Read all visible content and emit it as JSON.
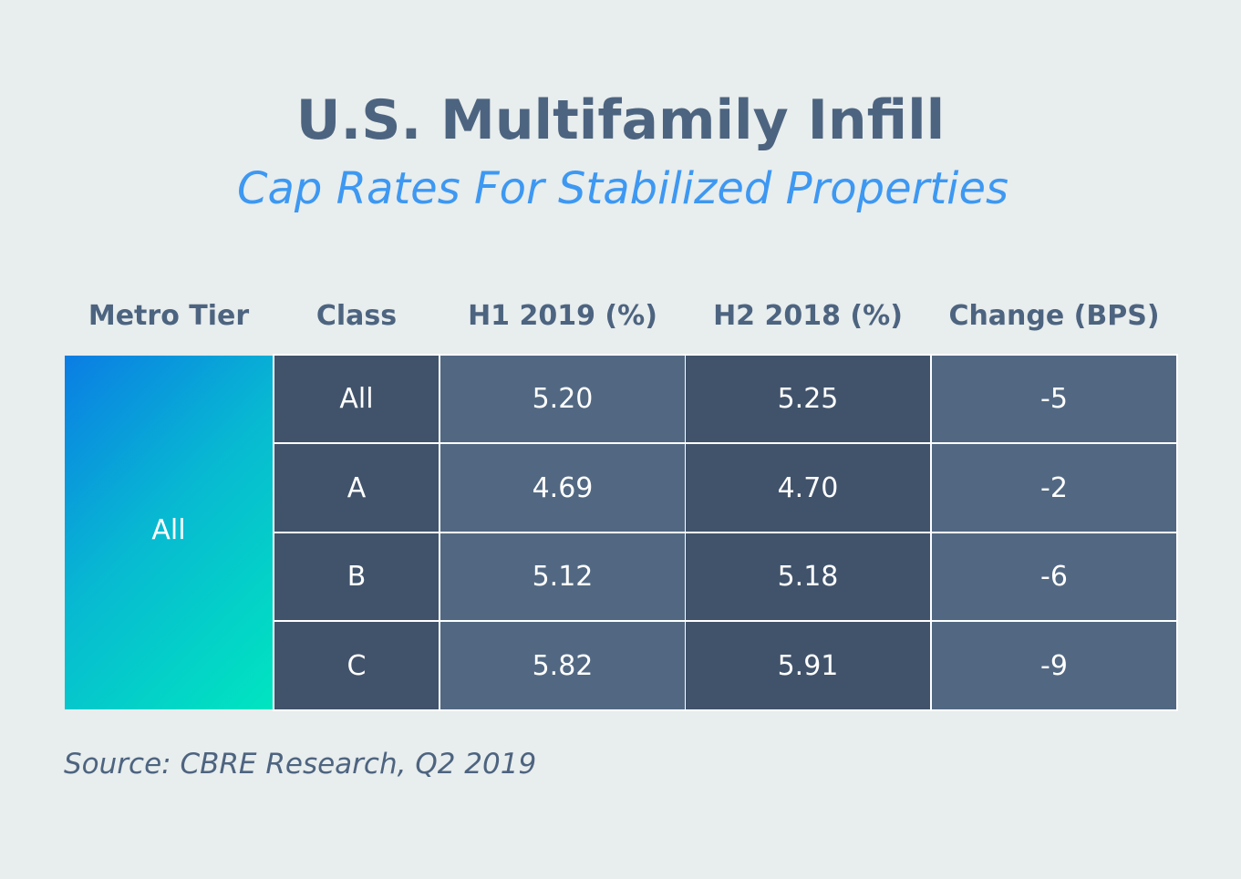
{
  "chart_data": {
    "type": "table",
    "title": "U.S. Multifamily Infill",
    "subtitle": "Cap Rates For Stabilized Properties",
    "columns": [
      "Metro Tier",
      "Class",
      "H1 2019 (%)",
      "H2 2018 (%)",
      "Change (BPS)"
    ],
    "metro_tier": "All",
    "rows": [
      {
        "class": "All",
        "h1_2019": "5.20",
        "h2_2018": "5.25",
        "change": "-5"
      },
      {
        "class": "A",
        "h1_2019": "4.69",
        "h2_2018": "4.70",
        "change": "-2"
      },
      {
        "class": "B",
        "h1_2019": "5.12",
        "h2_2018": "5.18",
        "change": "-6"
      },
      {
        "class": "C",
        "h1_2019": "5.82",
        "h2_2018": "5.91",
        "change": "-9"
      }
    ],
    "source": "Source: CBRE Research, Q2 2019"
  },
  "colors": {
    "background": "#e8eded",
    "title": "#4d6480",
    "subtitle": "#3d98f2",
    "cell_dark": "#41536b",
    "cell_light": "#526882",
    "tier_gradient_start": "#0a7de4",
    "tier_gradient_end": "#00e5c0",
    "cell_text": "#ffffff"
  }
}
